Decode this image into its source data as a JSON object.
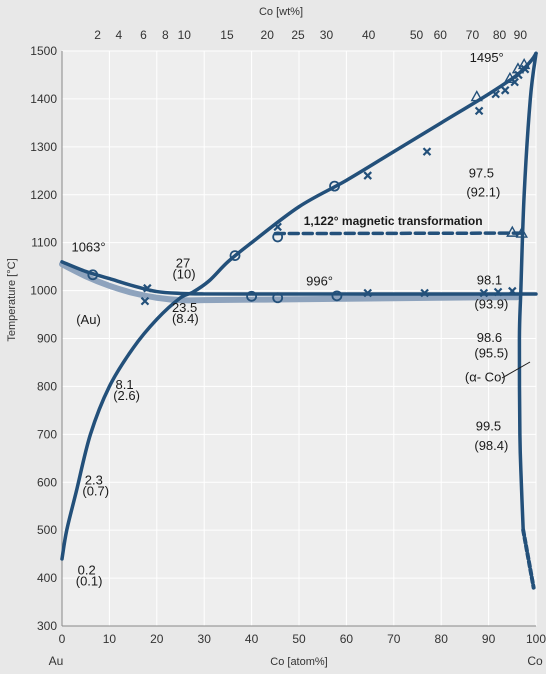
{
  "chart_data": {
    "type": "line",
    "title": "",
    "xlabel": "Co [atom%]",
    "ylabel": "Temperature [°C]",
    "x2label": "Co [wt%]",
    "xlim": [
      0,
      100
    ],
    "ylim": [
      300,
      1500
    ],
    "grid": true,
    "x_ticks": [
      0,
      10,
      20,
      30,
      40,
      50,
      60,
      70,
      80,
      90,
      100
    ],
    "y_ticks": [
      300,
      400,
      500,
      600,
      700,
      800,
      900,
      1000,
      1100,
      1200,
      1300,
      1400,
      1500
    ],
    "x2_ticks": [
      {
        "label": "2",
        "at": 7.5
      },
      {
        "label": "4",
        "at": 12
      },
      {
        "label": "6",
        "at": 17.2
      },
      {
        "label": "8",
        "at": 21.8
      },
      {
        "label": "10",
        "at": 25.8
      },
      {
        "label": "15",
        "at": 34.8
      },
      {
        "label": "20",
        "at": 43.3
      },
      {
        "label": "25",
        "at": 49.8
      },
      {
        "label": "30",
        "at": 55.8
      },
      {
        "label": "40",
        "at": 64.7
      },
      {
        "label": "50",
        "at": 74.8
      },
      {
        "label": "60",
        "at": 79.8
      },
      {
        "label": "70",
        "at": 86.6
      },
      {
        "label": "80",
        "at": 92.3
      },
      {
        "label": "90",
        "at": 96.7
      }
    ],
    "axis_end_labels": {
      "left": "Au",
      "right": "Co"
    },
    "series": [
      {
        "values": [
          [
            0,
            1060
          ],
          [
            5,
            1040
          ],
          [
            10,
            1025
          ],
          [
            15,
            1010
          ],
          [
            20,
            998
          ],
          [
            25,
            994
          ],
          [
            30,
            993
          ],
          [
            40,
            993
          ],
          [
            60,
            993
          ],
          [
            80,
            993
          ],
          [
            96,
            993
          ],
          [
            100,
            993
          ]
        ]
      },
      {
        "values": [
          [
            0,
            1055
          ],
          [
            5,
            1030
          ],
          [
            10,
            1010
          ],
          [
            15,
            995
          ],
          [
            20,
            985
          ],
          [
            25,
            980
          ],
          [
            30,
            980
          ],
          [
            50,
            982
          ],
          [
            70,
            984
          ],
          [
            90,
            986
          ],
          [
            96,
            986
          ]
        ]
      },
      {
        "values": [
          [
            0,
            440
          ],
          [
            1,
            500
          ],
          [
            3,
            580
          ],
          [
            6,
            700
          ],
          [
            10,
            800
          ],
          [
            15,
            880
          ],
          [
            20,
            940
          ],
          [
            25,
            985
          ],
          [
            27.5,
            996
          ],
          [
            31,
            1020
          ],
          [
            35,
            1060
          ],
          [
            40,
            1100
          ],
          [
            50,
            1175
          ],
          [
            60,
            1230
          ],
          [
            70,
            1290
          ],
          [
            80,
            1350
          ],
          [
            90,
            1410
          ],
          [
            96,
            1450
          ],
          [
            99,
            1480
          ],
          [
            100,
            1495
          ]
        ]
      },
      {
        "values": [
          [
            100,
            1495
          ],
          [
            98.8,
            1400
          ],
          [
            97.5,
            1200
          ],
          [
            96.8,
            1000
          ],
          [
            96.5,
            900
          ],
          [
            96.6,
            700
          ],
          [
            96.9,
            600
          ],
          [
            97.3,
            500
          ]
        ]
      },
      {
        "values": [
          [
            97.3,
            500
          ],
          [
            99.5,
            380
          ]
        ]
      },
      {
        "values": [
          [
            45,
            1119
          ],
          [
            98,
            1120
          ]
        ]
      }
    ],
    "points": {
      "circle": [
        [
          6.5,
          1033
        ],
        [
          36.5,
          1073
        ],
        [
          45.5,
          1112
        ],
        [
          57.5,
          1218
        ],
        [
          40,
          988
        ],
        [
          45.5,
          985
        ],
        [
          58,
          989
        ]
      ],
      "cross": [
        [
          18,
          1005
        ],
        [
          17.5,
          978
        ],
        [
          45.5,
          1133
        ],
        [
          64.5,
          1240
        ],
        [
          77,
          1290
        ],
        [
          88,
          1375
        ],
        [
          91.5,
          1410
        ],
        [
          93.5,
          1418
        ],
        [
          95.5,
          1435
        ],
        [
          96.3,
          1450
        ],
        [
          97.7,
          1462
        ],
        [
          64.5,
          995
        ],
        [
          76.5,
          995
        ],
        [
          89,
          995
        ],
        [
          92,
          997
        ],
        [
          95,
          999
        ]
      ],
      "triangle": [
        [
          87.5,
          1405
        ],
        [
          94.5,
          1443
        ],
        [
          96.2,
          1463
        ],
        [
          97.5,
          1472
        ],
        [
          95,
          1122
        ],
        [
          97,
          1120
        ]
      ]
    },
    "annotations": [
      {
        "text": "1063°",
        "x": 2,
        "y": 1082
      },
      {
        "text": "27",
        "x": 24,
        "y": 1048
      },
      {
        "text": "(10)",
        "x": 23.3,
        "y": 1025
      },
      {
        "text": "996°",
        "x": 51.5,
        "y": 1011
      },
      {
        "text": "23.5",
        "x": 23.2,
        "y": 955
      },
      {
        "text": "(8.4)",
        "x": 23.2,
        "y": 932
      },
      {
        "text": "(Au)",
        "x": 3,
        "y": 930
      },
      {
        "text": "8.1",
        "x": 11.3,
        "y": 795
      },
      {
        "text": "(2.6)",
        "x": 10.8,
        "y": 772
      },
      {
        "text": "2.3",
        "x": 4.8,
        "y": 595
      },
      {
        "text": "(0.7)",
        "x": 4.3,
        "y": 572
      },
      {
        "text": "0.2",
        "x": 3.3,
        "y": 408
      },
      {
        "text": "(0.1)",
        "x": 2.9,
        "y": 385
      },
      {
        "text": "1495°",
        "x": 86,
        "y": 1477
      },
      {
        "text": "1,122° magnetic transformation",
        "x": 51,
        "y": 1137
      },
      {
        "text": "97.5",
        "x": 85.8,
        "y": 1236
      },
      {
        "text": "(92.1)",
        "x": 85.3,
        "y": 1196
      },
      {
        "text": "98.1",
        "x": 87.5,
        "y": 1013
      },
      {
        "text": "(93.9)",
        "x": 87,
        "y": 963
      },
      {
        "text": "98.6",
        "x": 87.5,
        "y": 893
      },
      {
        "text": "(95.5)",
        "x": 87,
        "y": 860
      },
      {
        "text": "(α- Co)",
        "x": 85,
        "y": 810
      },
      {
        "text": "99.5",
        "x": 87.3,
        "y": 708
      },
      {
        "text": "(98.4)",
        "x": 87,
        "y": 667
      }
    ]
  }
}
